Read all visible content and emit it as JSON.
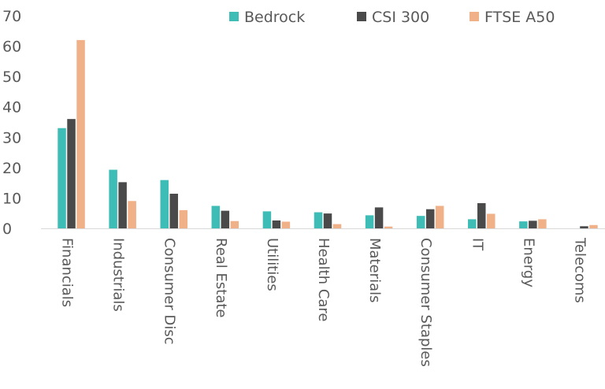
{
  "chart_data": {
    "type": "bar",
    "title": "",
    "xlabel": "",
    "ylabel": "",
    "ylim": [
      0,
      70
    ],
    "yticks": [
      0,
      10,
      20,
      30,
      40,
      50,
      60,
      70
    ],
    "grid": false,
    "legend_position": "top-right",
    "categories": [
      "Financials",
      "Industrials",
      "Consumer Disc",
      "Real Estate",
      "Utilities",
      "Health Care",
      "Materials",
      "Consumer Staples",
      "IT",
      "Energy",
      "Telecoms"
    ],
    "series": [
      {
        "name": "Bedrock",
        "color": "#3dbdb6",
        "values": [
          33,
          19.3,
          15.9,
          7.4,
          5.6,
          5.3,
          4.3,
          4.1,
          3.0,
          2.3,
          0
        ]
      },
      {
        "name": "CSI 300",
        "color": "#4a4a4a",
        "values": [
          36,
          15.2,
          11.4,
          5.8,
          2.6,
          4.9,
          6.9,
          6.3,
          8.3,
          2.5,
          0.7
        ]
      },
      {
        "name": "FTSE A50",
        "color": "#f0b088",
        "values": [
          62,
          9.0,
          6.0,
          2.4,
          2.2,
          1.4,
          0.6,
          7.4,
          4.8,
          3.0,
          1.1
        ]
      }
    ]
  }
}
